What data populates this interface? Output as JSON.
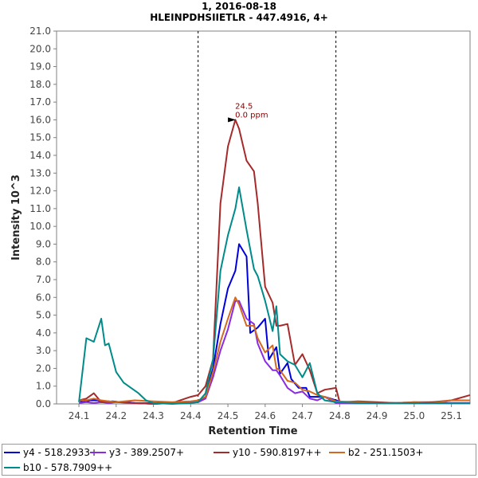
{
  "title_line1": "1, 2016-08-18",
  "title_line2": "HLEINPDHSIIETLR - 447.4916, 4+",
  "chart_data": {
    "type": "line",
    "title": "1, 2016-08-18",
    "subtitle": "HLEINPDHSIIETLR - 447.4916, 4+",
    "xlabel": "Retention Time",
    "ylabel": "Intensity 10^3",
    "xlim": [
      24.04,
      25.15
    ],
    "ylim": [
      0,
      21
    ],
    "xticks": [
      "24.1",
      "24.2",
      "24.3",
      "24.4",
      "24.5",
      "24.6",
      "24.7",
      "24.8",
      "24.9",
      "25.0",
      "25.1"
    ],
    "yticks": [
      "0.0",
      "1.0",
      "2.0",
      "3.0",
      "4.0",
      "5.0",
      "6.0",
      "7.0",
      "8.0",
      "9.0",
      "10.0",
      "11.0",
      "12.0",
      "13.0",
      "14.0",
      "15.0",
      "16.0",
      "17.0",
      "18.0",
      "19.0",
      "20.0",
      "21.0"
    ],
    "grid": false,
    "boundaries": [
      24.42,
      24.79
    ],
    "peak_annotation": {
      "x": 24.53,
      "y": 16.0,
      "label_time": "24.5",
      "label_ppm": "0.0 ppm"
    },
    "series": [
      {
        "name": "y4 - 518.2933+",
        "color": "#0000dd",
        "x": [
          24.1,
          24.11,
          24.13,
          24.15,
          24.17,
          24.19,
          24.21,
          24.23,
          24.25,
          24.3,
          24.35,
          24.4,
          24.42,
          24.44,
          24.46,
          24.48,
          24.5,
          24.52,
          24.53,
          24.55,
          24.56,
          24.58,
          24.6,
          24.61,
          24.63,
          24.64,
          24.66,
          24.67,
          24.69,
          24.71,
          24.72,
          24.74,
          24.76,
          24.79,
          24.81,
          24.85,
          24.9,
          24.95,
          25.0,
          25.05,
          25.1,
          25.15
        ],
        "y": [
          0.2,
          0.1,
          0.2,
          0.2,
          0.1,
          0.15,
          0.1,
          0.1,
          0.05,
          0.0,
          0.05,
          0.1,
          0.1,
          0.4,
          2.0,
          4.5,
          6.5,
          7.5,
          9.0,
          8.3,
          4.0,
          4.3,
          4.8,
          2.5,
          3.2,
          1.7,
          2.3,
          1.4,
          0.9,
          0.9,
          0.4,
          0.4,
          0.4,
          0.2,
          0.1,
          0.05,
          0.05,
          0.05,
          0.05,
          0.05,
          0.05,
          0.05
        ]
      },
      {
        "name": "y3 - 389.2507+",
        "color": "#8a2be2",
        "x": [
          24.1,
          24.12,
          24.14,
          24.16,
          24.18,
          24.2,
          24.25,
          24.3,
          24.35,
          24.4,
          24.42,
          24.44,
          24.46,
          24.48,
          24.5,
          24.52,
          24.53,
          24.55,
          24.57,
          24.58,
          24.6,
          24.62,
          24.63,
          24.64,
          24.66,
          24.68,
          24.7,
          24.72,
          24.74,
          24.76,
          24.79,
          24.85,
          24.9,
          24.95,
          25.0,
          25.05,
          25.1,
          25.15
        ],
        "y": [
          0.05,
          0.1,
          0.05,
          0.1,
          0.05,
          0.1,
          0.05,
          0.0,
          0.05,
          0.1,
          0.1,
          0.3,
          1.5,
          3.0,
          4.2,
          5.8,
          5.8,
          4.8,
          4.5,
          3.4,
          2.4,
          1.9,
          1.9,
          1.6,
          0.9,
          0.6,
          0.7,
          0.3,
          0.2,
          0.4,
          0.05,
          0.05,
          0.05,
          0.05,
          0.1,
          0.1,
          0.05,
          0.05
        ]
      },
      {
        "name": "y10 - 590.8197++",
        "color": "#a52a2a",
        "x": [
          24.1,
          24.12,
          24.14,
          24.16,
          24.18,
          24.2,
          24.25,
          24.3,
          24.35,
          24.4,
          24.42,
          24.44,
          24.46,
          24.48,
          24.5,
          24.52,
          24.53,
          24.55,
          24.57,
          24.58,
          24.6,
          24.62,
          24.63,
          24.64,
          24.66,
          24.68,
          24.7,
          24.72,
          24.74,
          24.76,
          24.79,
          24.8,
          24.85,
          24.9,
          24.95,
          25.0,
          25.05,
          25.1,
          25.15
        ],
        "y": [
          0.2,
          0.3,
          0.6,
          0.1,
          0.15,
          0.1,
          0.05,
          0.05,
          0.05,
          0.4,
          0.5,
          1.0,
          2.5,
          11.3,
          14.5,
          16.0,
          15.5,
          13.7,
          13.1,
          11.3,
          6.6,
          5.7,
          4.4,
          4.4,
          4.5,
          2.2,
          2.8,
          1.9,
          0.6,
          0.8,
          0.9,
          0.1,
          0.15,
          0.1,
          0.05,
          0.05,
          0.1,
          0.2,
          0.5
        ]
      },
      {
        "name": "b2 - 251.1503+",
        "color": "#d2691e",
        "x": [
          24.1,
          24.12,
          24.14,
          24.16,
          24.18,
          24.2,
          24.25,
          24.3,
          24.35,
          24.4,
          24.42,
          24.44,
          24.46,
          24.48,
          24.5,
          24.52,
          24.53,
          24.55,
          24.57,
          24.58,
          24.6,
          24.62,
          24.63,
          24.64,
          24.66,
          24.68,
          24.7,
          24.72,
          24.74,
          24.76,
          24.79,
          24.85,
          24.9,
          24.95,
          25.0,
          25.05,
          25.1,
          25.15
        ],
        "y": [
          0.2,
          0.2,
          0.3,
          0.2,
          0.15,
          0.1,
          0.2,
          0.15,
          0.1,
          0.15,
          0.2,
          0.4,
          1.8,
          3.5,
          4.8,
          6.0,
          5.6,
          4.4,
          4.4,
          3.7,
          2.9,
          3.3,
          2.0,
          1.9,
          1.3,
          1.2,
          0.8,
          0.7,
          0.5,
          0.4,
          0.15,
          0.1,
          0.05,
          0.05,
          0.1,
          0.05,
          0.2,
          0.2
        ]
      },
      {
        "name": "b10 - 578.7909++",
        "color": "#008b8b",
        "x": [
          24.1,
          24.12,
          24.14,
          24.16,
          24.17,
          24.18,
          24.2,
          24.22,
          24.24,
          24.26,
          24.28,
          24.3,
          24.35,
          24.4,
          24.42,
          24.44,
          24.46,
          24.48,
          24.5,
          24.52,
          24.53,
          24.55,
          24.57,
          24.58,
          24.6,
          24.62,
          24.63,
          24.64,
          24.66,
          24.68,
          24.7,
          24.72,
          24.74,
          24.76,
          24.79,
          24.85,
          24.9,
          24.95,
          25.0,
          25.05,
          25.1,
          25.15
        ],
        "y": [
          0.1,
          3.7,
          3.5,
          4.8,
          3.3,
          3.4,
          1.8,
          1.2,
          0.9,
          0.6,
          0.2,
          0.05,
          0.0,
          0.05,
          0.1,
          0.6,
          2.5,
          7.5,
          9.5,
          11.0,
          12.2,
          9.8,
          7.6,
          7.2,
          5.8,
          4.1,
          5.5,
          2.8,
          2.4,
          2.2,
          1.5,
          2.3,
          0.6,
          0.2,
          0.1,
          0.05,
          0.05,
          0.05,
          0.05,
          0.05,
          0.05,
          0.05
        ]
      }
    ]
  }
}
